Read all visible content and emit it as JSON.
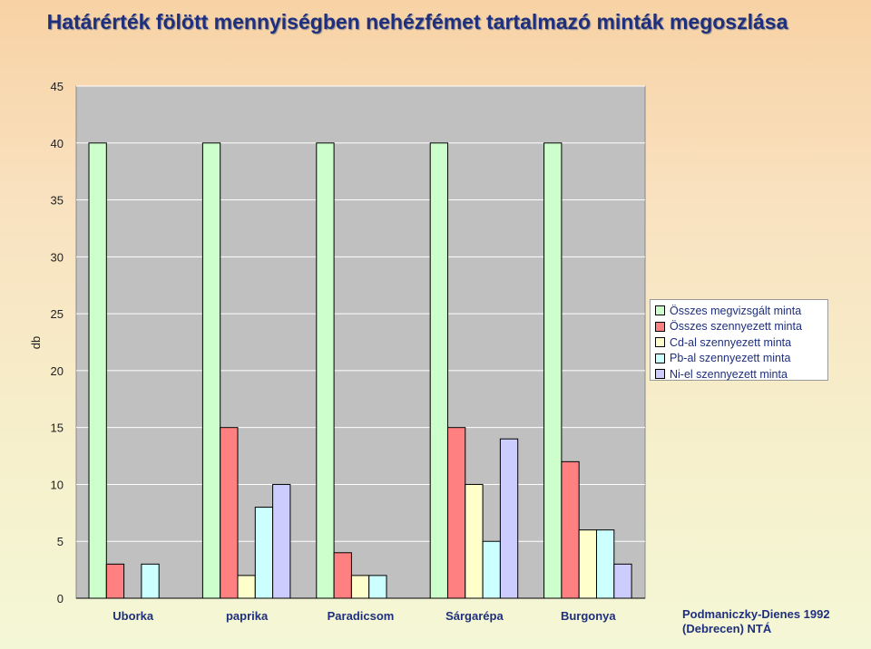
{
  "chart_data": {
    "type": "bar",
    "title": "Határérték fölött mennyiségben nehézfémet tartalmazó minták megoszlása",
    "ylabel": "db",
    "xlabel": "",
    "ylim": [
      0,
      45
    ],
    "yticks": [
      0,
      5,
      10,
      15,
      20,
      25,
      30,
      35,
      40,
      45
    ],
    "categories": [
      "Uborka",
      "paprika",
      "Paradicsom",
      "Sárgarépa",
      "Burgonya"
    ],
    "series": [
      {
        "name": "Összes megvizsgált minta",
        "color": "#ccffcc",
        "values": [
          40,
          40,
          40,
          40,
          40
        ]
      },
      {
        "name": "Összes szennyezett minta",
        "color": "#ff8080",
        "values": [
          3,
          15,
          4,
          15,
          12
        ]
      },
      {
        "name": "Cd-al szennyezett minta",
        "color": "#ffffcc",
        "values": [
          0,
          2,
          2,
          10,
          6
        ]
      },
      {
        "name": "Pb-al szennyezett minta",
        "color": "#ccffff",
        "values": [
          3,
          8,
          2,
          5,
          6
        ]
      },
      {
        "name": "Ni-el szennyezett minta",
        "color": "#ccccff",
        "values": [
          0,
          10,
          0,
          14,
          3
        ]
      }
    ],
    "legend_position": "right",
    "grid": true,
    "plot_background": "#c0c0c0"
  },
  "source_note": [
    "Podmaniczky-Dienes 1992",
    "(Debrecen) NTÁ"
  ]
}
